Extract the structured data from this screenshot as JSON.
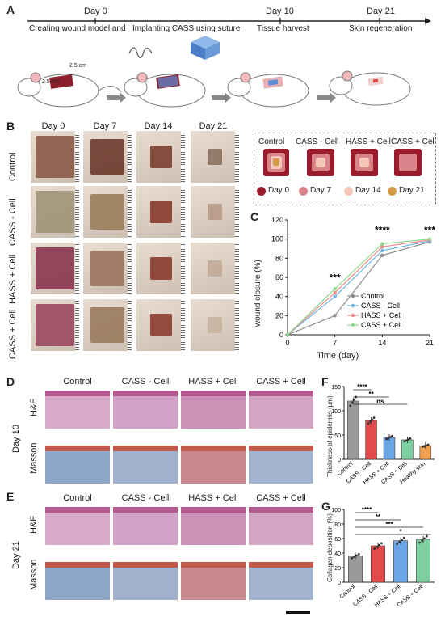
{
  "panel_labels": {
    "a": "A",
    "b": "B",
    "c": "C",
    "d": "D",
    "e": "E",
    "f": "F",
    "g": "G"
  },
  "panelA": {
    "timeline": [
      {
        "day": "Day 0",
        "caption_left": "Creating wound model and",
        "caption_right": "Implanting CASS using suture"
      },
      {
        "day": "Day 10",
        "caption": "Tissue harvest"
      },
      {
        "day": "Day 21",
        "caption": "Skin regeneration"
      }
    ],
    "dim_label_a": "2.5 cm",
    "dim_label_b": "2.5 cm",
    "colors": {
      "wound": "#8b1f2c",
      "scaffold": "#5b8fd6",
      "mouse_ear": "#f2b6b8"
    }
  },
  "panelB": {
    "columns": [
      "Day 0",
      "Day 7",
      "Day 14",
      "Day 21"
    ],
    "rows": [
      "Control",
      "CASS - Cell",
      "HASS + Cell",
      "CASS + Cell"
    ]
  },
  "schematic": {
    "groups": [
      "Control",
      "CASS - Cell",
      "HASS + Cell",
      "CASS + Cell"
    ],
    "legend": [
      {
        "label": "Day 0",
        "color": "#9b1b2d"
      },
      {
        "label": "Day 7",
        "color": "#d9848a"
      },
      {
        "label": "Day 14",
        "color": "#f3c6b8"
      },
      {
        "label": "Day 21",
        "color": "#d39a4a"
      }
    ]
  },
  "panelD": {
    "columns": [
      "Control",
      "CASS - Cell",
      "HASS + Cell",
      "CASS + Cell"
    ],
    "rows": [
      "H&E",
      "Masson"
    ],
    "group": "Day 10"
  },
  "panelE": {
    "columns": [
      "Control",
      "CASS - Cell",
      "HASS + Cell",
      "CASS + Cell"
    ],
    "rows": [
      "H&E",
      "Masson"
    ],
    "group": "Day 21"
  },
  "chart_data": [
    {
      "type": "line",
      "xlabel": "Time (day)",
      "ylabel": "wound closure (%)",
      "x": [
        0,
        7,
        14,
        21
      ],
      "xlim": [
        0,
        21
      ],
      "ylim": [
        0,
        120
      ],
      "yticks": [
        0,
        20,
        40,
        60,
        80,
        100,
        120
      ],
      "series": [
        {
          "name": "Control",
          "color": "#8e8e8e",
          "values": [
            0,
            20,
            83,
            97
          ]
        },
        {
          "name": "CASS - Cell",
          "color": "#6fb6e6",
          "values": [
            0,
            40,
            88,
            98
          ]
        },
        {
          "name": "HASS + Cell",
          "color": "#f08a8a",
          "values": [
            0,
            44,
            92,
            99
          ]
        },
        {
          "name": "CASS + Cell",
          "color": "#8fd88f",
          "values": [
            0,
            48,
            95,
            100
          ]
        }
      ],
      "annotations": [
        {
          "x": 7,
          "text": "***"
        },
        {
          "x": 14,
          "text": "****"
        },
        {
          "x": 21,
          "text": "***"
        }
      ],
      "legend": "right"
    },
    {
      "type": "bar",
      "ylabel": "Thickness of epidermis (μm)",
      "categories": [
        "Control",
        "CASS - Cell",
        "HASS + Cell",
        "CASS + Cell",
        "Healthy skin"
      ],
      "values": [
        120,
        80,
        45,
        40,
        28
      ],
      "colors": [
        "#9a9a9a",
        "#e24b4b",
        "#6aa6e6",
        "#7fd0a0",
        "#f0a050"
      ],
      "ylim": [
        0,
        150
      ],
      "yticks": [
        0,
        50,
        100,
        150
      ],
      "significance": [
        "****",
        "**",
        "ns"
      ]
    },
    {
      "type": "bar",
      "ylabel": "Collagen deposition (%)",
      "categories": [
        "Control",
        "CASS - Cell",
        "HASS + Cell",
        "CASS + Cell"
      ],
      "values": [
        36,
        50,
        57,
        59
      ],
      "colors": [
        "#9a9a9a",
        "#e24b4b",
        "#6aa6e6",
        "#7fd0a0"
      ],
      "ylim": [
        0,
        100
      ],
      "yticks": [
        0,
        20,
        40,
        60,
        80,
        100
      ],
      "significance": [
        "****",
        "**",
        "***",
        "*"
      ]
    }
  ]
}
